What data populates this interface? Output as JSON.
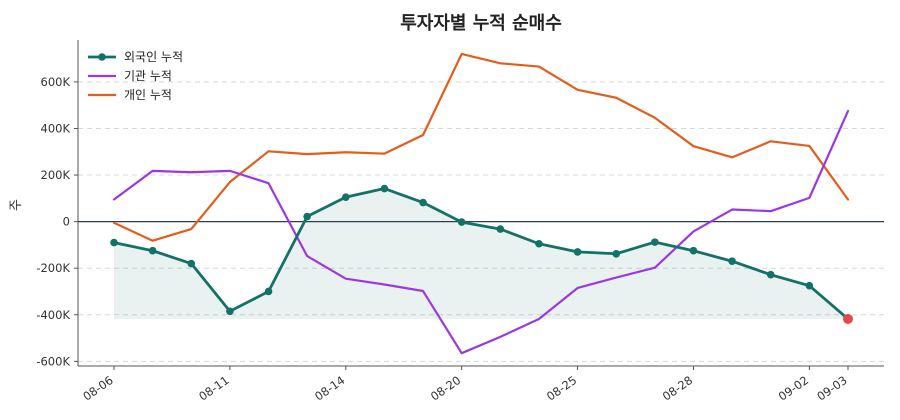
{
  "chart_data": {
    "type": "line",
    "title": "투자자별 누적 순매수",
    "ylabel": "주",
    "xlabel": "",
    "ylim": [
      -620000,
      780000
    ],
    "grid": true,
    "legend_position": "top-left",
    "x": [
      "08-06",
      "08-07",
      "08-08",
      "08-11",
      "08-12",
      "08-13",
      "08-14",
      "08-18",
      "08-19",
      "08-20",
      "08-21",
      "08-22",
      "08-25",
      "08-26",
      "08-27",
      "08-28",
      "08-29",
      "09-01",
      "09-02",
      "09-03"
    ],
    "x_tick_labels": [
      "08-06",
      "08-11",
      "08-14",
      "08-20",
      "08-25",
      "08-28",
      "09-02",
      "09-03"
    ],
    "y_ticks": [
      -600000,
      -400000,
      -200000,
      0,
      200000,
      400000,
      600000
    ],
    "y_tick_labels": [
      "-600K",
      "-400K",
      "-200K",
      "0",
      "200K",
      "400K",
      "600K"
    ],
    "series": [
      {
        "name": "외국인 누적",
        "color": "#137266",
        "marker": true,
        "values": [
          -90000,
          -125000,
          -180000,
          -385000,
          -300000,
          22000,
          105000,
          142000,
          82000,
          -2000,
          -32000,
          -95000,
          -130000,
          -138000,
          -88000,
          -125000,
          -170000,
          -228000,
          -275000,
          -418000
        ]
      },
      {
        "name": "기관 누적",
        "color": "#9b38e6",
        "marker": false,
        "values": [
          95000,
          218000,
          212000,
          218000,
          165000,
          -148000,
          -245000,
          -270000,
          -298000,
          -565000,
          -495000,
          -418000,
          -285000,
          -240000,
          -198000,
          -42000,
          52000,
          45000,
          102000,
          475000
        ]
      },
      {
        "name": "개인 누적",
        "color": "#e45d1a",
        "marker": false,
        "values": [
          -5000,
          -82000,
          -32000,
          170000,
          302000,
          290000,
          298000,
          292000,
          372000,
          720000,
          680000,
          666000,
          566000,
          532000,
          446000,
          324000,
          276000,
          345000,
          325000,
          95000
        ]
      }
    ],
    "last_point_color": "#e34a4a",
    "zero_line_color": "#2c3e50"
  }
}
